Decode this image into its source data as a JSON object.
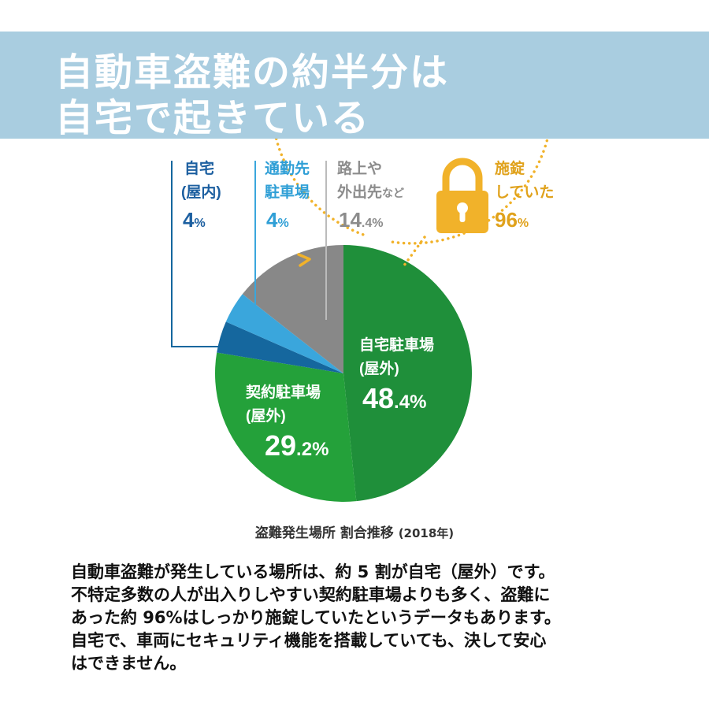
{
  "headline": {
    "line1": "自動車盗難の約半分は",
    "line2": "自宅で起きている"
  },
  "colors": {
    "header_band": "#a9cde0",
    "home_parking": "#1f8f3a",
    "contract_parking": "#24a13a",
    "home_indoor": "#15679e",
    "commute_parking": "#3aa6dc",
    "street_other": "#888888",
    "lock": "#f1b22a"
  },
  "chart_data": {
    "type": "pie",
    "title": "盗難発生場所 割合推移",
    "title_year": "(2018年)",
    "unit": "%",
    "slices": [
      {
        "id": "home_parking",
        "name_line1": "自宅駐車場",
        "name_line2": "(屋外)",
        "value": 48.4,
        "value_int": "48",
        "value_dec": ".4%"
      },
      {
        "id": "contract_parking",
        "name_line1": "契約駐車場",
        "name_line2": "(屋外)",
        "value": 29.2,
        "value_int": "29",
        "value_dec": ".2%"
      },
      {
        "id": "home_indoor",
        "name_line1": "自宅",
        "name_line2": "(屋内)",
        "value": 4,
        "value_int": "4",
        "value_dec": "%"
      },
      {
        "id": "commute_parking",
        "name_line1": "通勤先",
        "name_line2": "駐車場",
        "value": 4,
        "value_int": "4",
        "value_dec": "%"
      },
      {
        "id": "street_other",
        "name_line1": "路上や",
        "name_line2": "外出先",
        "name_suffix": "など",
        "value": 14.4,
        "value_int": "14",
        "value_dec": ".4%"
      }
    ],
    "lock_annotation": {
      "line1": "施錠",
      "line2": "していた",
      "value": 96,
      "value_int": "96",
      "value_dec": "%"
    }
  },
  "body_text": {
    "line1": "自動車盗難が発生している場所は、約 5 割が自宅（屋外）です。",
    "line2": "不特定多数の人が出入りしやすい契約駐車場よりも多く、盗難に",
    "line3": "あった約 96%はしっかり施錠していたというデータもあります。",
    "line4": "自宅で、車両にセキュリティ機能を搭載していても、決して安心",
    "line5": "はできません。"
  }
}
